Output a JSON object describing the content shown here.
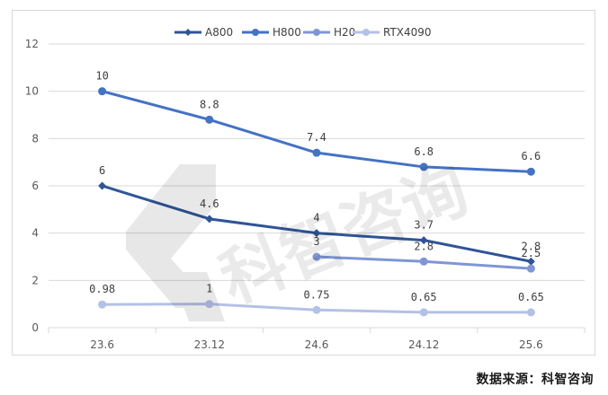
{
  "chart_data": {
    "type": "line",
    "categories": [
      "23.6",
      "23.12",
      "24.6",
      "24.12",
      "25.6"
    ],
    "ylim": [
      0,
      12
    ],
    "yticks": [
      0,
      2,
      4,
      6,
      8,
      10,
      12
    ],
    "grid": "horizontal",
    "legend_position": "top-right",
    "series": [
      {
        "name": "A800",
        "color": "#2f5597",
        "marker": "diamond",
        "values": [
          6,
          4.6,
          4,
          3.7,
          2.8
        ],
        "labels": [
          "6",
          "4.6",
          "4",
          "3.7",
          "2.8"
        ]
      },
      {
        "name": "H800",
        "color": "#4472c4",
        "marker": "circle",
        "values": [
          10,
          8.8,
          7.4,
          6.8,
          6.6
        ],
        "labels": [
          "10",
          "8.8",
          "7.4",
          "6.8",
          "6.6"
        ]
      },
      {
        "name": "H20",
        "color": "#7f96d6",
        "marker": "circle",
        "values": [
          null,
          null,
          3,
          2.8,
          2.5
        ],
        "labels": [
          null,
          null,
          "3",
          "2.8",
          "2.5"
        ]
      },
      {
        "name": "RTX4090",
        "color": "#b4c1e6",
        "marker": "circle",
        "values": [
          0.98,
          1,
          0.75,
          0.65,
          0.65
        ],
        "labels": [
          "0.98",
          "1",
          "0.75",
          "0.65",
          "0.65"
        ]
      }
    ]
  },
  "source_note": "数据来源：科智咨询",
  "watermark_text": "科智咨询"
}
